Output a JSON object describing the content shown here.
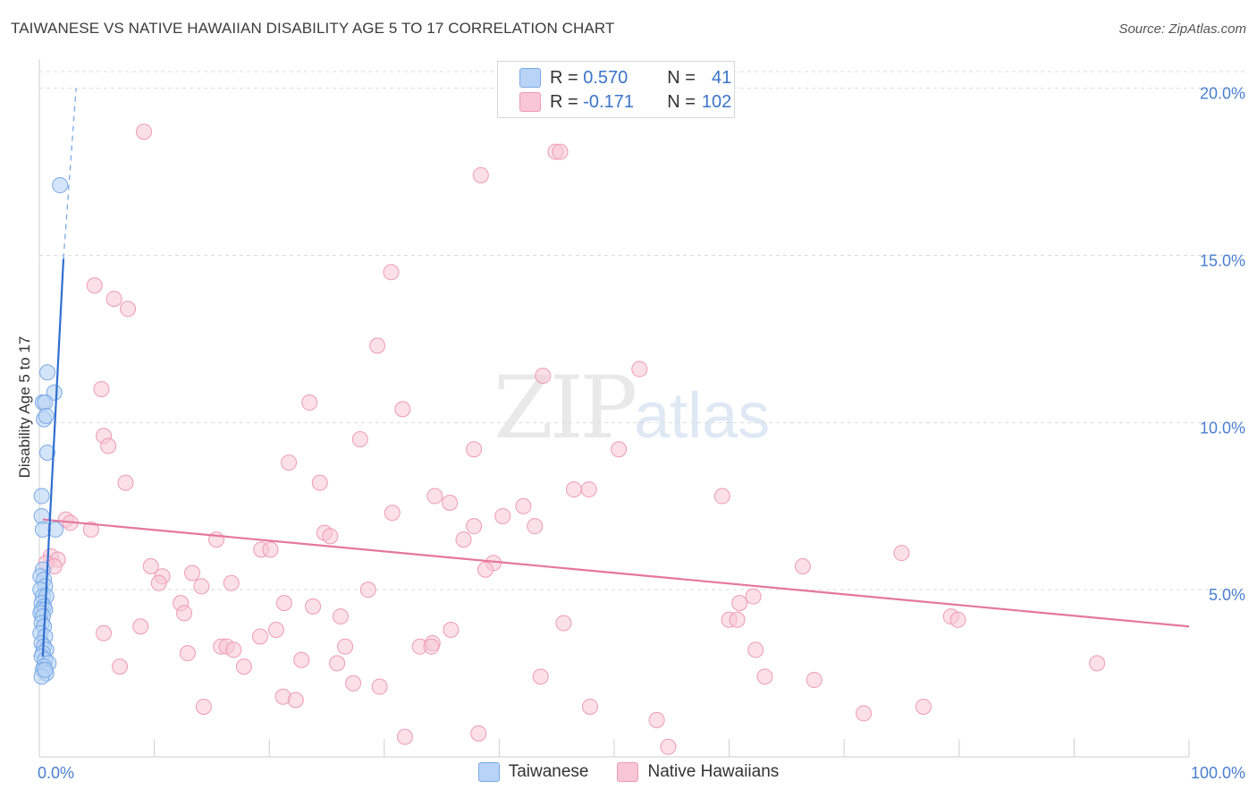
{
  "title": "TAIWANESE VS NATIVE HAWAIIAN DISABILITY AGE 5 TO 17 CORRELATION CHART",
  "source": "Source: ZipAtlas.com",
  "watermark": {
    "zip": "ZIP",
    "atlas": "atlas"
  },
  "legend": {
    "rows": [
      {
        "r_label": "R = ",
        "r_value": "0.570",
        "n_label": "N = ",
        "n_value": "41"
      },
      {
        "r_label": "R = ",
        "r_value": "-0.171",
        "n_label": "N = ",
        "n_value": "102"
      }
    ]
  },
  "bottom_legend": [
    "Taiwanese",
    "Native Hawaiians"
  ],
  "colors": {
    "taiwanese_fill": "#b8d3f5",
    "taiwanese_stroke": "#7aa9e6",
    "taiwanese_line": "#2f6fd0",
    "hawaiian_fill": "#f8c6d6",
    "hawaiian_stroke": "#ee9ab5",
    "hawaiian_line": "#e5779d"
  },
  "chart_data": {
    "type": "scatter",
    "title": "TAIWANESE VS NATIVE HAWAIIAN DISABILITY AGE 5 TO 17 CORRELATION CHART",
    "xlabel": "",
    "ylabel": "Disability Age 5 to 17",
    "xlim": [
      0,
      100
    ],
    "ylim": [
      0,
      20.5
    ],
    "x_tick_labels": [
      "0.0%",
      "100.0%"
    ],
    "y_ticks": [
      5,
      10,
      15,
      20
    ],
    "y_tick_labels": [
      "5.0%",
      "10.0%",
      "15.0%",
      "20.0%"
    ],
    "series": [
      {
        "name": "Taiwanese",
        "R": 0.57,
        "N": 41,
        "trend": {
          "x0": 0.3,
          "y0": 3.0,
          "x1": 2.1,
          "y1": 14.9,
          "dash_to_x": 3.2,
          "dash_to_y": 20.0
        },
        "points": [
          [
            1.8,
            17.1
          ],
          [
            0.7,
            11.5
          ],
          [
            1.3,
            10.9
          ],
          [
            0.3,
            10.6
          ],
          [
            0.5,
            10.6
          ],
          [
            0.4,
            10.1
          ],
          [
            0.6,
            10.2
          ],
          [
            0.7,
            9.1
          ],
          [
            0.2,
            7.8
          ],
          [
            0.2,
            7.2
          ],
          [
            1.4,
            6.8
          ],
          [
            0.3,
            6.8
          ],
          [
            0.3,
            5.6
          ],
          [
            0.1,
            5.4
          ],
          [
            0.4,
            5.3
          ],
          [
            0.5,
            5.1
          ],
          [
            0.1,
            5.0
          ],
          [
            0.3,
            4.8
          ],
          [
            0.6,
            4.8
          ],
          [
            0.2,
            4.6
          ],
          [
            0.4,
            4.5
          ],
          [
            0.2,
            4.4
          ],
          [
            0.5,
            4.4
          ],
          [
            0.1,
            4.3
          ],
          [
            0.3,
            4.2
          ],
          [
            0.2,
            4.0
          ],
          [
            0.4,
            3.9
          ],
          [
            0.1,
            3.7
          ],
          [
            0.5,
            3.6
          ],
          [
            0.2,
            3.4
          ],
          [
            0.4,
            3.3
          ],
          [
            0.6,
            3.2
          ],
          [
            0.3,
            3.1
          ],
          [
            0.2,
            3.0
          ],
          [
            0.5,
            2.9
          ],
          [
            0.8,
            2.8
          ],
          [
            0.4,
            2.7
          ],
          [
            0.3,
            2.6
          ],
          [
            0.6,
            2.5
          ],
          [
            0.2,
            2.4
          ],
          [
            0.5,
            2.6
          ]
        ]
      },
      {
        "name": "Native Hawaiians",
        "R": -0.171,
        "N": 102,
        "trend": {
          "x0": 0.3,
          "y0": 7.1,
          "x1": 100,
          "y1": 3.9
        },
        "points": [
          [
            9.1,
            18.7
          ],
          [
            44.9,
            18.1
          ],
          [
            45.3,
            18.1
          ],
          [
            38.4,
            17.4
          ],
          [
            30.6,
            14.5
          ],
          [
            4.8,
            14.1
          ],
          [
            6.5,
            13.7
          ],
          [
            7.7,
            13.4
          ],
          [
            29.4,
            12.3
          ],
          [
            52.2,
            11.6
          ],
          [
            43.8,
            11.4
          ],
          [
            5.4,
            11.0
          ],
          [
            23.5,
            10.6
          ],
          [
            31.6,
            10.4
          ],
          [
            5.6,
            9.6
          ],
          [
            27.9,
            9.5
          ],
          [
            37.8,
            9.2
          ],
          [
            6.0,
            9.3
          ],
          [
            50.4,
            9.2
          ],
          [
            21.7,
            8.8
          ],
          [
            7.5,
            8.2
          ],
          [
            24.4,
            8.2
          ],
          [
            47.8,
            8.0
          ],
          [
            46.5,
            8.0
          ],
          [
            59.4,
            7.8
          ],
          [
            34.4,
            7.8
          ],
          [
            35.7,
            7.6
          ],
          [
            42.1,
            7.5
          ],
          [
            30.7,
            7.3
          ],
          [
            40.3,
            7.2
          ],
          [
            2.3,
            7.1
          ],
          [
            2.7,
            7.0
          ],
          [
            37.8,
            6.9
          ],
          [
            43.1,
            6.9
          ],
          [
            4.5,
            6.8
          ],
          [
            24.8,
            6.7
          ],
          [
            25.3,
            6.6
          ],
          [
            15.4,
            6.5
          ],
          [
            36.9,
            6.5
          ],
          [
            19.3,
            6.2
          ],
          [
            20.1,
            6.2
          ],
          [
            75.0,
            6.1
          ],
          [
            1.0,
            6.0
          ],
          [
            1.6,
            5.9
          ],
          [
            0.6,
            5.8
          ],
          [
            1.3,
            5.7
          ],
          [
            39.5,
            5.8
          ],
          [
            9.7,
            5.7
          ],
          [
            38.8,
            5.6
          ],
          [
            66.4,
            5.7
          ],
          [
            10.7,
            5.4
          ],
          [
            13.3,
            5.5
          ],
          [
            10.4,
            5.2
          ],
          [
            16.7,
            5.2
          ],
          [
            14.1,
            5.1
          ],
          [
            28.6,
            5.0
          ],
          [
            62.1,
            4.8
          ],
          [
            12.3,
            4.6
          ],
          [
            21.3,
            4.6
          ],
          [
            23.8,
            4.5
          ],
          [
            60.9,
            4.6
          ],
          [
            12.6,
            4.3
          ],
          [
            26.2,
            4.2
          ],
          [
            79.3,
            4.2
          ],
          [
            79.9,
            4.1
          ],
          [
            60.0,
            4.1
          ],
          [
            60.7,
            4.1
          ],
          [
            45.6,
            4.0
          ],
          [
            8.8,
            3.9
          ],
          [
            20.6,
            3.8
          ],
          [
            35.8,
            3.8
          ],
          [
            5.6,
            3.7
          ],
          [
            19.2,
            3.6
          ],
          [
            33.1,
            3.3
          ],
          [
            34.2,
            3.4
          ],
          [
            15.8,
            3.3
          ],
          [
            16.3,
            3.3
          ],
          [
            26.6,
            3.3
          ],
          [
            16.9,
            3.2
          ],
          [
            12.9,
            3.1
          ],
          [
            62.3,
            3.2
          ],
          [
            22.8,
            2.9
          ],
          [
            25.9,
            2.8
          ],
          [
            17.8,
            2.7
          ],
          [
            7.0,
            2.7
          ],
          [
            92.0,
            2.8
          ],
          [
            43.6,
            2.4
          ],
          [
            63.1,
            2.4
          ],
          [
            67.4,
            2.3
          ],
          [
            27.3,
            2.2
          ],
          [
            29.6,
            2.1
          ],
          [
            21.2,
            1.8
          ],
          [
            22.3,
            1.7
          ],
          [
            14.3,
            1.5
          ],
          [
            47.9,
            1.5
          ],
          [
            76.9,
            1.5
          ],
          [
            71.7,
            1.3
          ],
          [
            53.7,
            1.1
          ],
          [
            31.8,
            0.6
          ],
          [
            38.2,
            0.7
          ],
          [
            54.7,
            0.3
          ],
          [
            34.1,
            3.3
          ]
        ]
      }
    ]
  }
}
